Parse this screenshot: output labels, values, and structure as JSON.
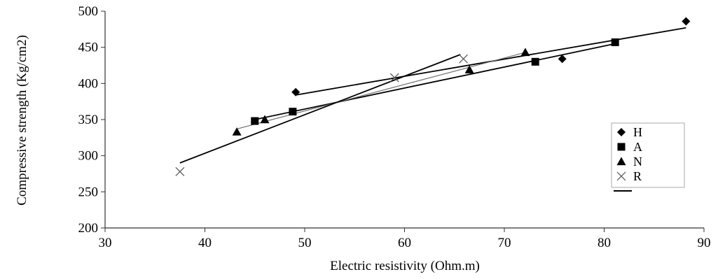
{
  "chart_data": {
    "type": "scatter",
    "xlabel": "Electric resistivity (Ohm.m)",
    "ylabel": "Compressive strength (Kg/cm2)",
    "xlim": [
      30,
      90
    ],
    "ylim": [
      200,
      500
    ],
    "xticks": [
      30,
      40,
      50,
      60,
      70,
      80,
      90
    ],
    "yticks": [
      200,
      250,
      300,
      350,
      400,
      450,
      500
    ],
    "grid": false,
    "legend_position": "right",
    "series": [
      {
        "name": "H",
        "marker": "diamond",
        "points": [
          [
            49.1,
            388
          ],
          [
            75.8,
            434
          ],
          [
            88.2,
            486
          ]
        ]
      },
      {
        "name": "A",
        "marker": "square",
        "points": [
          [
            45.0,
            348
          ],
          [
            48.8,
            361
          ],
          [
            73.1,
            430
          ],
          [
            81.1,
            457
          ]
        ]
      },
      {
        "name": "N",
        "marker": "triangle",
        "points": [
          [
            43.2,
            333
          ],
          [
            46.0,
            350
          ],
          [
            66.5,
            419
          ],
          [
            72.1,
            443
          ]
        ]
      },
      {
        "name": "R",
        "marker": "x",
        "points": [
          [
            37.5,
            278
          ],
          [
            59.0,
            408
          ],
          [
            65.9,
            434
          ]
        ]
      }
    ],
    "trendlines": [
      {
        "series": "H",
        "color": "#000000",
        "from": [
          49.1,
          384
        ],
        "to": [
          88.2,
          477
        ]
      },
      {
        "series": "A",
        "color": "#000000",
        "from": [
          45.0,
          350
        ],
        "to": [
          81.1,
          455
        ]
      },
      {
        "series": "N",
        "color": "#707070",
        "from": [
          43.2,
          337
        ],
        "to": [
          72.1,
          443
        ]
      },
      {
        "series": "R",
        "color": "#000000",
        "from": [
          37.5,
          290
        ],
        "to": [
          65.6,
          440
        ]
      }
    ],
    "legend_entries": [
      "H",
      "A",
      "N",
      "R"
    ]
  }
}
